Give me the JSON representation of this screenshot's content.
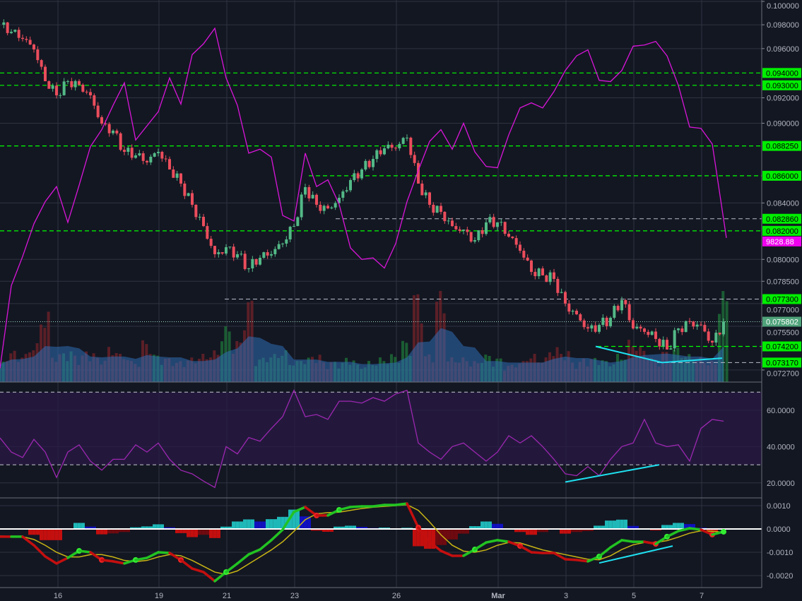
{
  "chart_data": [
    {
      "type": "candlestick",
      "panel": "price",
      "y_scale": "log",
      "ylim": [
        0.0727,
        0.1
      ],
      "grid": true,
      "x_tick_labels": [
        "16",
        "19",
        "21",
        "23",
        "26",
        "Mar",
        "3",
        "5",
        "7"
      ],
      "y_tick_labels": [
        "0.100000",
        "0.098000",
        "0.096000",
        "0.092000",
        "0.090000",
        "0.084000",
        "0.080000",
        "0.078500",
        "0.077000",
        "0.075500",
        "0.072700"
      ],
      "close": [
        0.098,
        0.09741,
        0.09681,
        0.09593,
        0.09333,
        0.0922,
        0.09333,
        0.09305,
        0.0922,
        0.08997,
        0.08942,
        0.0878,
        0.08753,
        0.087,
        0.0878,
        0.08647,
        0.08542,
        0.08387,
        0.08234,
        0.08036,
        0.08085,
        0.08036,
        0.07938,
        0.08011,
        0.08036,
        0.0811,
        0.08234,
        0.08516,
        0.08387,
        0.08361,
        0.08438,
        0.08568,
        0.08647,
        0.08726,
        0.08807,
        0.08807,
        0.08888,
        0.08542,
        0.08387,
        0.08336,
        0.08234,
        0.08209,
        0.08134,
        0.0826,
        0.0826,
        0.08159,
        0.0806,
        0.07914,
        0.0789,
        0.07866,
        0.077,
        0.07629,
        0.07536,
        0.07559,
        0.07606,
        0.07723,
        0.07536,
        0.07514,
        0.07468,
        0.074,
        0.07536,
        0.07582,
        0.07559,
        0.07445,
        0.07582
      ],
      "overlay_series": {
        "color": "#d915d9",
        "last_value_label": "9828.88",
        "values_on_price_axis": [
          0.0728,
          0.0782,
          0.0802,
          0.0825,
          0.0841,
          0.0852,
          0.0826,
          0.0853,
          0.0882,
          0.0895,
          0.0914,
          0.0932,
          0.0887,
          0.0898,
          0.0909,
          0.0936,
          0.0915,
          0.0955,
          0.0964,
          0.0977,
          0.0936,
          0.0914,
          0.0877,
          0.088,
          0.0874,
          0.0831,
          0.0827,
          0.0877,
          0.0852,
          0.0857,
          0.0839,
          0.0808,
          0.08,
          0.0801,
          0.0794,
          0.0811,
          0.0841,
          0.0864,
          0.0886,
          0.0895,
          0.088,
          0.09,
          0.0878,
          0.0867,
          0.0866,
          0.0891,
          0.0912,
          0.0916,
          0.0912,
          0.0925,
          0.0942,
          0.0954,
          0.0959,
          0.0934,
          0.0933,
          0.0942,
          0.0962,
          0.0963,
          0.0966,
          0.0954,
          0.093,
          0.0897,
          0.0896,
          0.0884,
          0.0815
        ]
      },
      "volume": [
        30,
        45,
        40,
        55,
        100,
        40,
        45,
        40,
        45,
        35,
        50,
        40,
        30,
        60,
        40,
        35,
        30,
        35,
        40,
        45,
        80,
        60,
        120,
        35,
        40,
        45,
        30,
        35,
        40,
        30,
        30,
        35,
        25,
        30,
        35,
        40,
        60,
        130,
        40,
        130,
        35,
        35,
        30,
        40,
        35,
        25,
        30,
        40,
        35,
        50,
        45,
        30,
        35,
        35,
        30,
        40,
        60,
        50,
        35,
        45,
        50,
        40,
        35,
        30,
        130
      ],
      "current_price": {
        "value": 0.075802,
        "label": "0.075802",
        "color": "#4fa37a"
      },
      "levels": [
        {
          "value": 0.094,
          "label": "0.094000",
          "style": "green-dashed"
        },
        {
          "value": 0.093,
          "label": "0.093000",
          "style": "green-dashed"
        },
        {
          "value": 0.08825,
          "label": "0.088250",
          "style": "green-dashed"
        },
        {
          "value": 0.086,
          "label": "0.086000",
          "style": "green-dashed"
        },
        {
          "value": 0.08286,
          "label": "0.082860",
          "style": "gray-dashed"
        },
        {
          "value": 0.082,
          "label": "0.082000",
          "style": "green-dashed"
        },
        {
          "value": 0.0773,
          "label": "0.077300",
          "style": "gray-dashed"
        },
        {
          "value": 0.0742,
          "label": "0.074200",
          "style": "green-dashed"
        },
        {
          "value": 0.07317,
          "label": "0.073170",
          "style": "gray-dashed"
        }
      ],
      "trendline_points": [
        0.0742,
        0.07317,
        0.07345
      ],
      "colors": {
        "up": "#53b987",
        "down": "#eb4d5c",
        "level": "#00ff00",
        "trendline": "#1fe0f0",
        "background": "#131722"
      }
    },
    {
      "type": "line",
      "panel": "rsi",
      "ylim": [
        15,
        72
      ],
      "bands": [
        30,
        70
      ],
      "y_tick_labels": [
        "60.0000",
        "40.0000",
        "20.0000"
      ],
      "values": [
        44.8,
        37,
        34,
        44,
        37,
        23,
        37,
        41,
        32,
        27,
        33,
        33,
        41,
        37,
        42,
        33,
        27,
        25,
        21,
        17.5,
        40,
        36,
        45,
        43,
        50,
        56.5,
        71,
        56.5,
        57.7,
        55,
        65,
        65,
        64,
        67,
        65,
        69,
        71,
        42,
        37,
        33,
        40,
        42,
        37,
        32,
        37,
        46,
        42,
        46,
        40,
        33,
        25,
        24,
        29,
        24,
        33,
        40,
        42,
        55,
        42,
        40,
        41,
        32,
        50,
        55,
        54
      ],
      "divergence_line": [
        20.5,
        30
      ],
      "color": "#9c27b0"
    },
    {
      "type": "line",
      "panel": "macd",
      "ylim": [
        -0.0025,
        0.0014
      ],
      "y_tick_labels": [
        "0.0010",
        "0.0000",
        "-0.0010",
        "-0.0020"
      ],
      "macd": [
        -0.00033,
        -0.00033,
        -0.00033,
        -0.0007,
        -0.00118,
        -0.00148,
        -0.00124,
        -0.00094,
        -0.001,
        -0.00133,
        -0.00139,
        -0.00148,
        -0.00133,
        -0.00124,
        -0.001,
        -0.00103,
        -0.00133,
        -0.0017,
        -0.00185,
        -0.00224,
        -0.00185,
        -0.00148,
        -0.00109,
        -0.00088,
        -0.00048,
        -3e-05,
        0.00073,
        0.00094,
        0.00058,
        0.00058,
        0.00082,
        0.00094,
        0.00097,
        0.00097,
        0.00103,
        0.00103,
        0.00109,
        6e-05,
        -0.00055,
        -0.00094,
        -0.00115,
        -0.00115,
        -0.00088,
        -0.00058,
        -0.00048,
        -0.00055,
        -0.00073,
        -0.001,
        -0.00103,
        -0.00103,
        -0.0013,
        -0.00133,
        -0.00139,
        -0.00118,
        -0.00079,
        -0.00048,
        -0.00055,
        -0.00055,
        -0.00064,
        -0.00033,
        -9e-05,
        3e-05,
        -3e-05,
        -0.00024,
        -0.00012
      ],
      "signal": [
        -0.0003,
        -0.00032,
        -0.00033,
        -0.00045,
        -0.0007,
        -0.001,
        -0.0012,
        -0.0012,
        -0.0011,
        -0.0011,
        -0.0012,
        -0.00135,
        -0.0014,
        -0.00135,
        -0.0012,
        -0.0011,
        -0.00115,
        -0.00135,
        -0.0016,
        -0.00185,
        -0.00195,
        -0.0018,
        -0.0015,
        -0.0012,
        -0.0009,
        -0.00055,
        -0.0001,
        0.0004,
        0.00065,
        0.0007,
        0.00072,
        0.0008,
        0.00088,
        0.00093,
        0.00097,
        0.001,
        0.00104,
        0.0008,
        0.0003,
        -0.00025,
        -0.0007,
        -0.00095,
        -0.001,
        -0.0009,
        -0.0007,
        -0.00058,
        -0.0006,
        -0.00075,
        -0.0009,
        -0.001,
        -0.0011,
        -0.0012,
        -0.0013,
        -0.00132,
        -0.00115,
        -0.00088,
        -0.00068,
        -0.00058,
        -0.00058,
        -0.0005,
        -0.00035,
        -0.00018,
        -8e-05,
        -0.0001,
        -0.00014
      ],
      "histogram": [
        -3e-05,
        -1e-05,
        0,
        -0.00025,
        -0.00048,
        -0.00048,
        -4e-05,
        0.00026,
        0.0001,
        -0.00023,
        -0.00019,
        -0.00013,
        7e-05,
        0.00011,
        0.0002,
        7e-05,
        -0.00018,
        -0.00035,
        -0.00025,
        -0.00039,
        0.0001,
        0.00032,
        0.00041,
        0.00032,
        0.00042,
        0.00052,
        0.00083,
        0.00054,
        -7e-05,
        -0.00012,
        0.0001,
        0.00014,
        9e-05,
        4e-05,
        6e-05,
        3e-05,
        5e-05,
        -0.00074,
        -0.00085,
        -0.00069,
        -0.00045,
        -0.0002,
        0.00012,
        0.00032,
        0.00022,
        3e-05,
        -0.00013,
        -0.00025,
        -0.00013,
        -3e-05,
        -0.0002,
        -0.00013,
        -9e-05,
        0.00014,
        0.00036,
        0.0004,
        0.00013,
        3e-05,
        -6e-05,
        0.00017,
        0.00026,
        0.00021,
        5e-05,
        -0.00014,
        2e-05
      ],
      "divergence_line": [
        -0.00146,
        -0.00073
      ],
      "colors": {
        "macd_up": "#22c322",
        "macd_down": "#c40f0f",
        "signal": "#c8b414",
        "hist_pos_rising": "#1fb8b8",
        "hist_pos_falling": "#1010c0",
        "hist_neg_falling": "#c40f0f",
        "hist_neg_rising": "#6e0a10"
      }
    }
  ]
}
